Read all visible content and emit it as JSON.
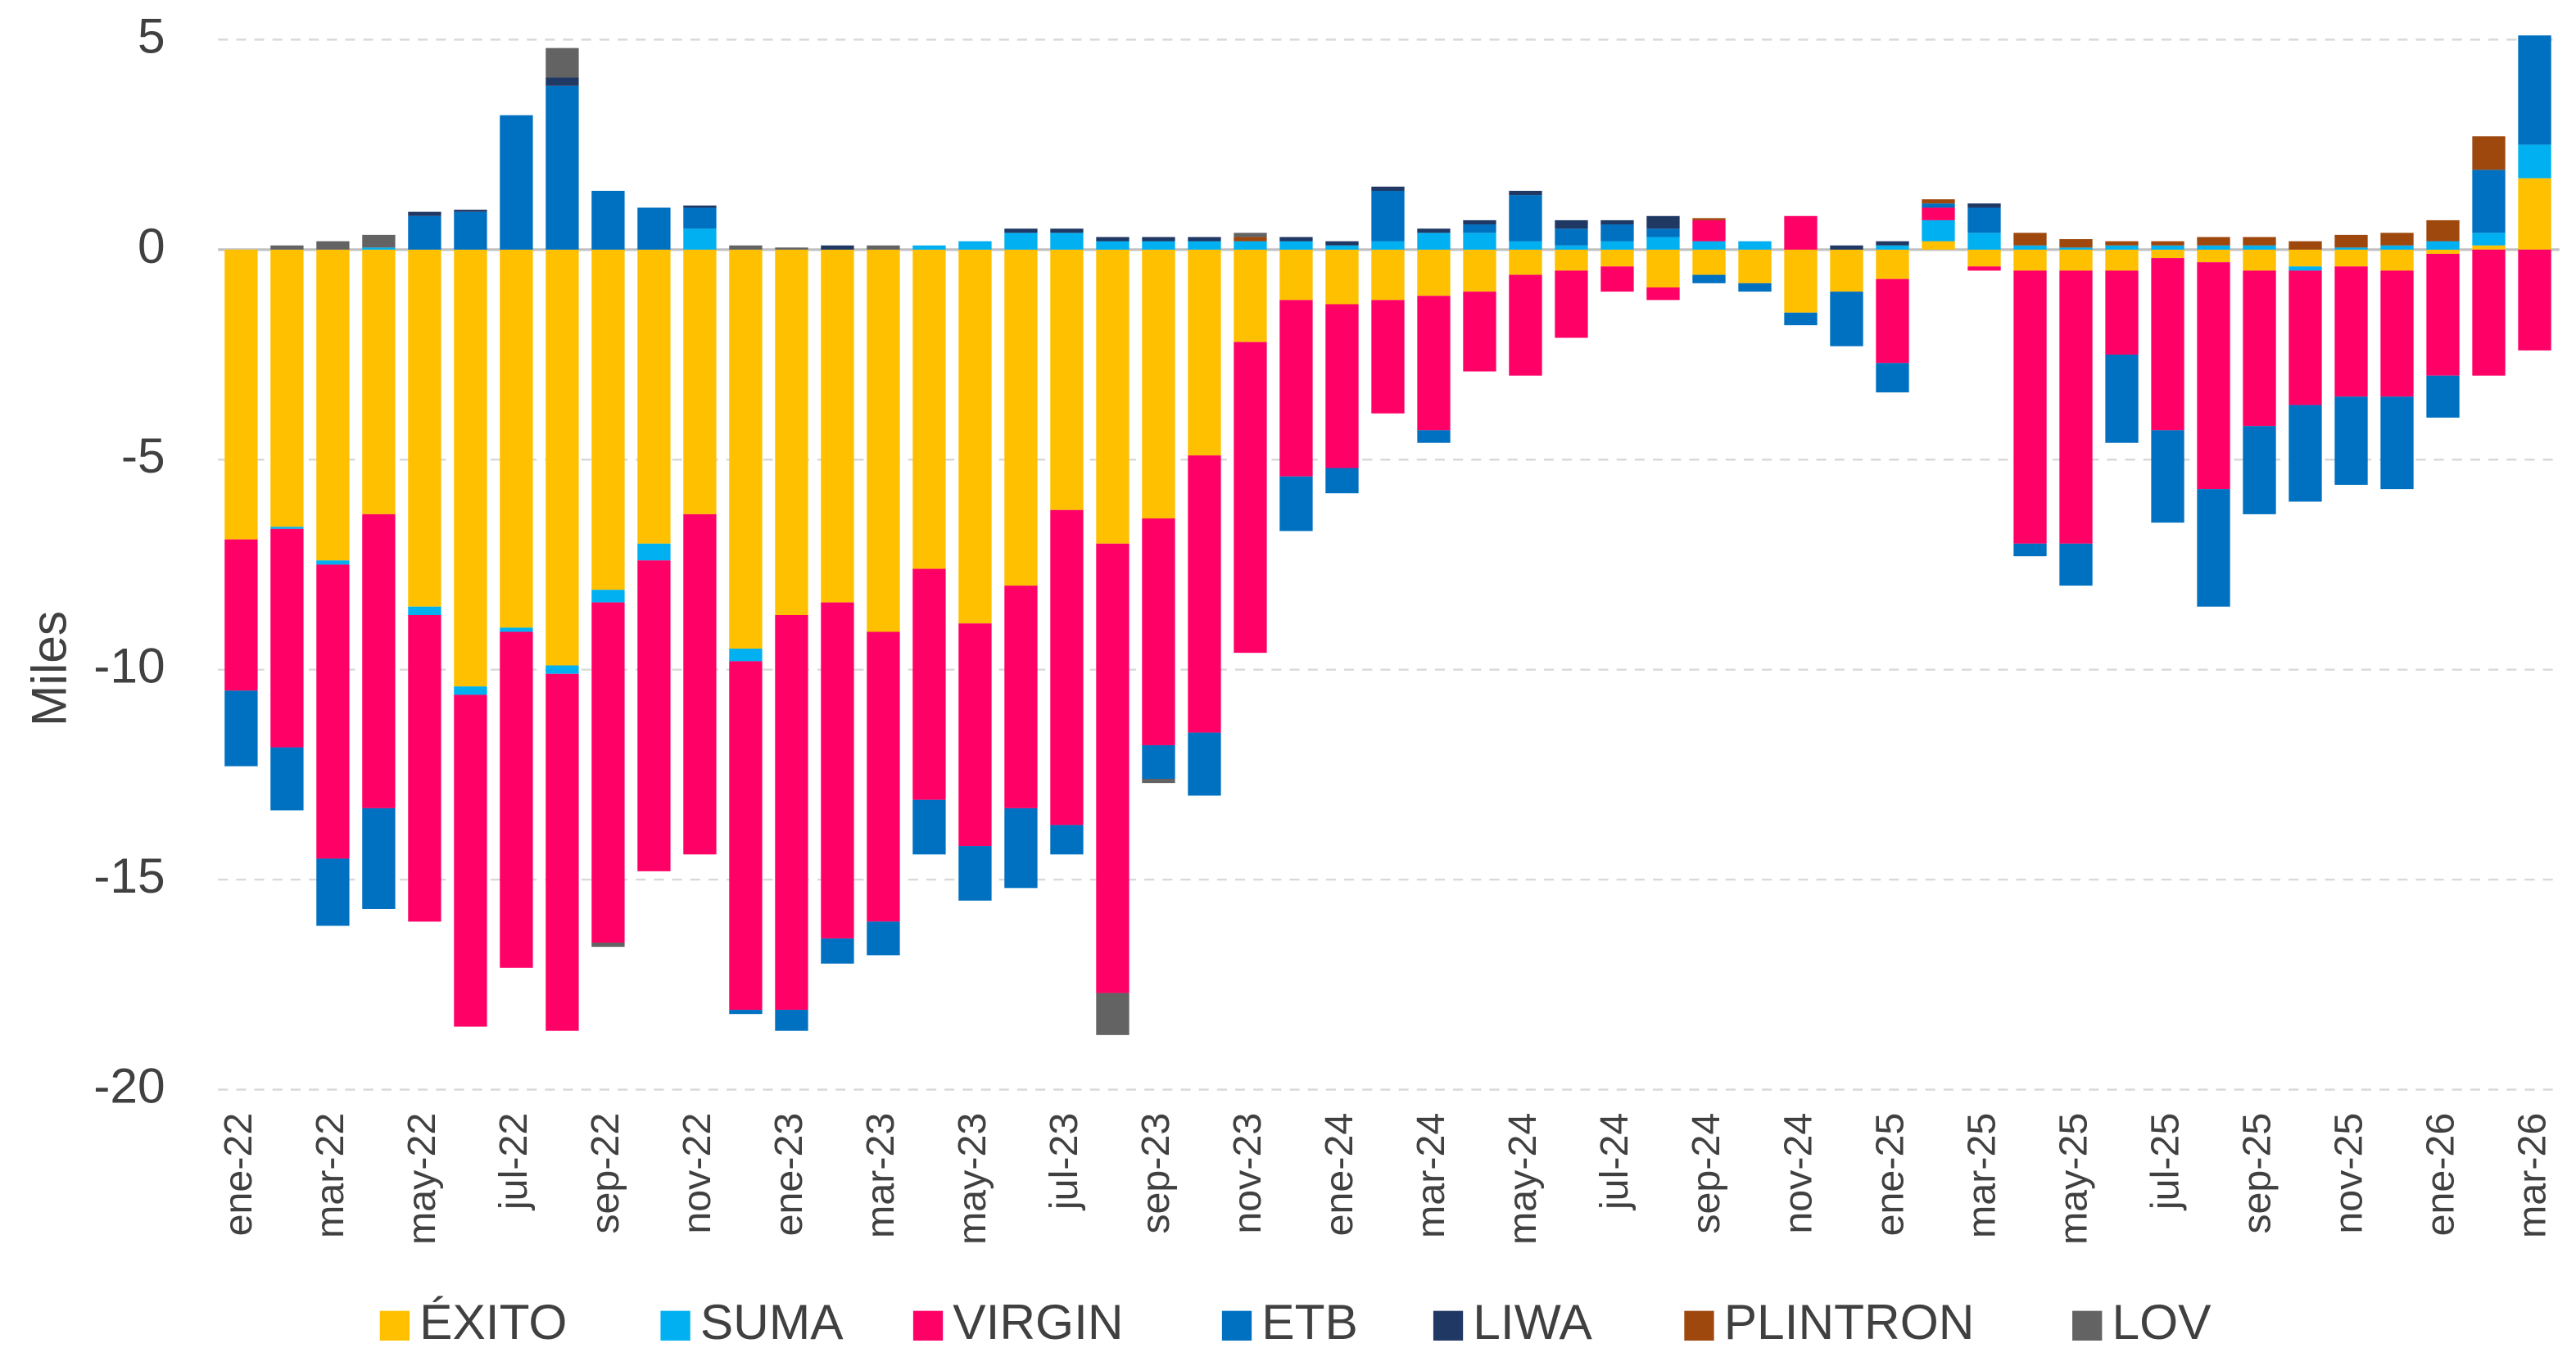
{
  "chart_data": {
    "type": "stacked_bar",
    "y_label": "Miles",
    "categories": [
      "ene-22",
      null,
      "mar-22",
      null,
      "may-22",
      null,
      "jul-22",
      null,
      "sep-22",
      null,
      "nov-22",
      null,
      "ene-23",
      null,
      "mar-23",
      null,
      "may-23",
      null,
      "jul-23",
      null,
      "sep-23",
      null,
      "nov-23",
      null,
      "ene-24",
      null,
      "mar-24",
      null,
      "may-24",
      null,
      "jul-24",
      null,
      "sep-24",
      null,
      "nov-24",
      null,
      "ene-25",
      null,
      "mar-25",
      null,
      "may-25",
      null,
      "jul-25",
      null,
      "sep-25",
      null,
      "nov-25",
      null,
      "ene-26",
      null,
      "mar-26"
    ],
    "series": [
      {
        "name": "ÉXITO",
        "color": "#FFC000",
        "values": [
          -6.9,
          -6.6,
          -7.4,
          -6.3,
          -8.5,
          -10.4,
          -9.0,
          -9.9,
          -8.1,
          -7.0,
          -6.3,
          -9.5,
          -8.7,
          -8.4,
          -9.1,
          -7.6,
          -8.9,
          -8.0,
          -6.2,
          -7.0,
          -6.4,
          -4.9,
          -2.2,
          -1.2,
          -1.3,
          -1.2,
          -1.1,
          -1.0,
          -0.6,
          -0.5,
          -0.4,
          -0.9,
          -0.6,
          -0.8,
          -1.5,
          -1.0,
          -0.7,
          0.2,
          -0.4,
          -0.5,
          -0.5,
          -0.5,
          -0.2,
          -0.3,
          -0.5,
          -0.4,
          -0.4,
          -0.5,
          -0.1,
          0.1,
          1.7
        ]
      },
      {
        "name": "SUMA",
        "color": "#00B0F0",
        "values": [
          0,
          -0.05,
          -0.1,
          0.05,
          -0.2,
          -0.2,
          -0.1,
          -0.2,
          -0.3,
          -0.4,
          0.5,
          -0.3,
          0,
          0,
          0,
          0.1,
          0.2,
          0.4,
          0.4,
          0.2,
          0.2,
          0.2,
          0.2,
          0.2,
          0.1,
          0.2,
          0.4,
          0.4,
          0.2,
          0.1,
          0.2,
          0.3,
          0.2,
          0.2,
          0,
          0,
          0.1,
          0.5,
          0.4,
          0.1,
          0.05,
          0.1,
          0.1,
          0.1,
          0.1,
          -0.1,
          0.05,
          0.1,
          0.2,
          0.3,
          0.8
        ]
      },
      {
        "name": "VIRGIN",
        "color": "#FF0066",
        "values": [
          -3.6,
          -5.2,
          -7.0,
          -7.0,
          -7.3,
          -7.9,
          -8.0,
          -8.5,
          -8.1,
          -7.4,
          -8.1,
          -8.3,
          -9.4,
          -8.0,
          -6.9,
          -5.5,
          -5.3,
          -5.3,
          -7.5,
          -10.7,
          -5.4,
          -6.6,
          -7.4,
          -4.2,
          -3.9,
          -2.7,
          -3.2,
          -1.9,
          -2.4,
          -1.6,
          -0.6,
          -0.3,
          0.5,
          0,
          0.8,
          0,
          -2.0,
          0.3,
          -0.1,
          -6.5,
          -6.5,
          -2.0,
          -4.1,
          -5.4,
          -3.7,
          -3.2,
          -3.1,
          -3.0,
          -2.9,
          -3.0,
          -2.4
        ]
      },
      {
        "name": "ETB",
        "color": "#0070C0",
        "values": [
          -1.8,
          -1.5,
          -1.6,
          -2.4,
          0.8,
          0.9,
          3.2,
          3.9,
          1.4,
          1.0,
          0.5,
          -0.1,
          -0.5,
          -0.6,
          -0.8,
          -1.3,
          -1.3,
          -1.9,
          -0.7,
          0,
          -0.8,
          -1.5,
          0,
          -1.3,
          -0.6,
          1.2,
          -0.3,
          0.2,
          1.1,
          0.4,
          0.4,
          0.2,
          -0.2,
          -0.2,
          -0.3,
          -1.3,
          -0.7,
          0.1,
          0.6,
          -0.3,
          -1.0,
          -2.1,
          -2.2,
          -2.8,
          -2.1,
          -2.3,
          -2.1,
          -2.2,
          -1.0,
          1.5,
          2.6
        ]
      },
      {
        "name": "LIWA",
        "color": "#203864",
        "values": [
          0,
          0,
          0,
          0,
          0.1,
          0.05,
          0,
          0.2,
          0,
          0,
          0.05,
          0,
          0,
          0.1,
          0,
          0,
          0,
          0.1,
          0.1,
          0.1,
          0.1,
          0.1,
          0,
          0.1,
          0.1,
          0.1,
          0.1,
          0.1,
          0.1,
          0.2,
          0.1,
          0.3,
          0,
          0,
          0,
          0.1,
          0.1,
          0,
          0.1,
          0,
          0,
          0,
          0,
          0,
          0,
          0,
          0,
          0,
          0,
          0,
          0
        ]
      },
      {
        "name": "PLINTRON",
        "color": "#9E480E",
        "values": [
          0,
          0,
          0,
          0,
          0,
          0,
          0,
          0,
          0,
          0,
          0,
          0,
          0,
          0,
          0,
          0,
          0,
          0,
          0,
          0,
          0,
          0,
          0.1,
          0,
          0,
          0,
          0,
          0,
          0,
          0,
          0,
          0,
          0.05,
          0,
          0,
          0,
          0,
          0.1,
          0,
          0.3,
          0.2,
          0.1,
          0.1,
          0.2,
          0.2,
          0.2,
          0.3,
          0.3,
          0.5,
          0.8,
          0
        ]
      },
      {
        "name": "LOV",
        "color": "#636363",
        "values": [
          0,
          0.1,
          0.2,
          0.3,
          0,
          0,
          0,
          0.7,
          -0.1,
          0,
          0,
          0.1,
          0.05,
          0,
          0.1,
          0,
          0,
          0,
          0,
          -1.0,
          -0.1,
          0,
          0.1,
          0,
          0,
          0,
          0,
          0,
          0,
          0,
          0,
          0,
          0,
          0,
          0,
          0,
          0,
          0,
          0,
          0,
          0,
          0,
          0,
          0,
          0,
          0,
          0,
          0,
          0,
          0,
          0
        ]
      }
    ],
    "ylim": [
      -20,
      5
    ],
    "yticks": [
      -20,
      -15,
      -10,
      -5,
      0,
      5
    ],
    "grid": true,
    "legend": "bottom"
  }
}
